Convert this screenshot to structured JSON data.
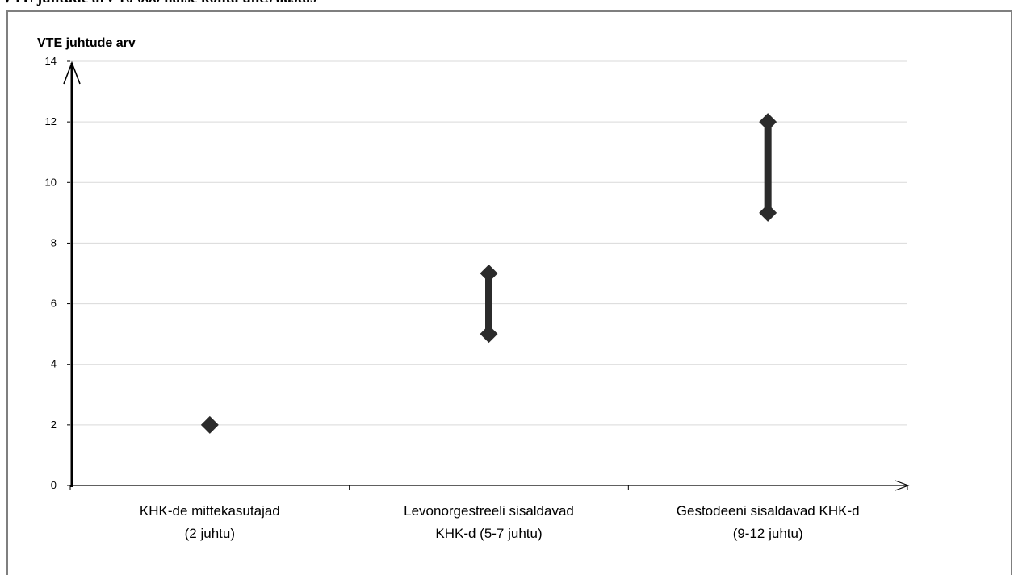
{
  "document": {
    "title": "VTE juhtude arv 10 000 naise kohta ühes aastas"
  },
  "chart_data": {
    "type": "scatter",
    "ylabel": "VTE juhtude arv",
    "xlabel": "",
    "ylim": [
      0,
      14
    ],
    "yticks": [
      0,
      2,
      4,
      6,
      8,
      10,
      12,
      14
    ],
    "grid": true,
    "legend": "none",
    "categories": [
      {
        "line1": "KHK-de mittekasutajad",
        "line2": "(2 juhtu)"
      },
      {
        "line1": "Levonorgestreeli sisaldavad",
        "line2": "KHK-d (5-7 juhtu)"
      },
      {
        "line1": "Gestodeeni sisaldavad KHK-d",
        "line2": "(9-12 juhtu)"
      }
    ],
    "ranges": [
      {
        "low": 2,
        "high": 2
      },
      {
        "low": 5,
        "high": 7
      },
      {
        "low": 9,
        "high": 12
      }
    ],
    "colors": {
      "marker": "#2b2b2b",
      "gridline": "#d9d9d9",
      "axis": "#000000"
    }
  }
}
